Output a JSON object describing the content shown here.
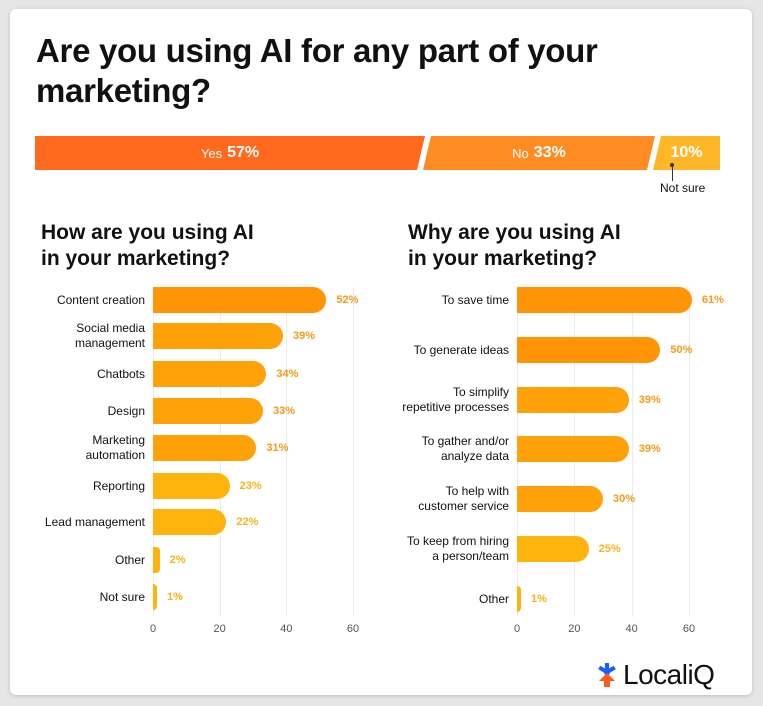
{
  "title": "Are you using AI for any part of your marketing?",
  "summary_bar": {
    "segments": [
      {
        "label": "Yes",
        "value": "57%",
        "color": "#ff6a1f"
      },
      {
        "label": "No",
        "value": "33%",
        "color": "#ff8c22"
      },
      {
        "label": "",
        "value": "10%",
        "color": "#ffb728"
      }
    ],
    "not_sure_label": "Not sure"
  },
  "left": {
    "subtitle": "How are you using AI\nin your marketing?",
    "ticks": [
      "0",
      "20",
      "40",
      "60"
    ]
  },
  "right": {
    "subtitle": "Why are you using AI\nin your marketing?",
    "ticks": [
      "0",
      "20",
      "40",
      "60"
    ]
  },
  "brand": {
    "name": "LocaliQ",
    "colors": {
      "blue": "#1e5bff",
      "orange": "#ff5a1f"
    }
  },
  "chart_data": [
    {
      "type": "bar",
      "title": "Are you using AI for any part of your marketing?",
      "orientation": "horizontal-stacked",
      "categories": [
        "Yes",
        "No",
        "Not sure"
      ],
      "values": [
        57,
        33,
        10
      ],
      "unit": "%"
    },
    {
      "type": "bar",
      "title": "How are you using AI in your marketing?",
      "orientation": "horizontal",
      "categories": [
        "Content creation",
        "Social media\nmanagement",
        "Chatbots",
        "Design",
        "Marketing\nautomation",
        "Reporting",
        "Lead management",
        "Other",
        "Not sure"
      ],
      "values": [
        52,
        39,
        34,
        33,
        31,
        23,
        22,
        2,
        1
      ],
      "labels": [
        "52%",
        "39%",
        "34%",
        "33%",
        "31%",
        "23%",
        "22%",
        "2%",
        "1%"
      ],
      "xlim": [
        0,
        60
      ],
      "xticks": [
        0,
        20,
        40,
        60
      ],
      "grid": true,
      "unit": "%"
    },
    {
      "type": "bar",
      "title": "Why are you using AI in your marketing?",
      "orientation": "horizontal",
      "categories": [
        "To save time",
        "To generate ideas",
        "To simplify\nrepetitive processes",
        "To gather and/or\nanalyze data",
        "To help with\ncustomer service",
        "To keep from hiring\na person/team",
        "Other"
      ],
      "values": [
        61,
        50,
        39,
        39,
        30,
        25,
        1
      ],
      "labels": [
        "61%",
        "50%",
        "39%",
        "39%",
        "30%",
        "25%",
        "1%"
      ],
      "xlim": [
        0,
        60
      ],
      "xticks": [
        0,
        20,
        40,
        60
      ],
      "grid": true,
      "unit": "%"
    }
  ]
}
